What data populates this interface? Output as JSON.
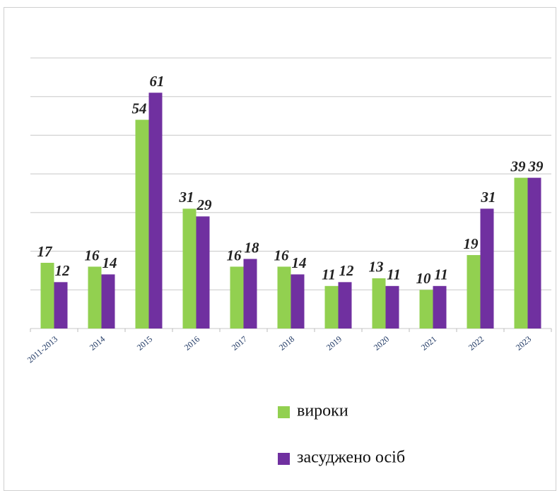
{
  "chart_data": {
    "type": "bar",
    "categories": [
      "2011-2013",
      "2014",
      "2015",
      "2016",
      "2017",
      "2018",
      "2019",
      "2020",
      "2021",
      "2022",
      "2023"
    ],
    "series": [
      {
        "name": "вироки",
        "color": "#92d050",
        "values": [
          17,
          16,
          54,
          31,
          16,
          16,
          11,
          13,
          10,
          19,
          39
        ]
      },
      {
        "name": "засуджено осіб",
        "color": "#7030a0",
        "values": [
          12,
          14,
          61,
          29,
          18,
          14,
          12,
          11,
          11,
          31,
          39
        ]
      }
    ],
    "ylim": [
      0,
      70
    ],
    "yticks": [
      0,
      10,
      20,
      30,
      40,
      50,
      60,
      70
    ],
    "grid": true
  }
}
